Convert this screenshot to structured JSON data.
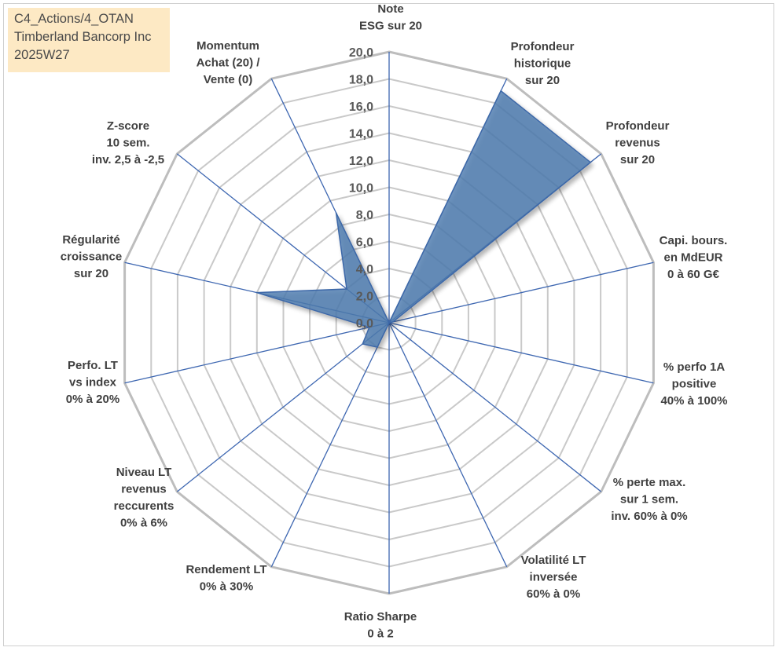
{
  "title_box": {
    "line1": "C4_Actions/4_OTAN",
    "line2": "Timberland Bancorp Inc",
    "line3": "2025W27"
  },
  "chart_data": {
    "type": "radar",
    "rmax": 20,
    "gridlines": [
      0,
      2,
      4,
      6,
      8,
      10,
      12,
      14,
      16,
      18,
      20
    ],
    "tick_labels": [
      "0,0",
      "2,0",
      "4,0",
      "6,0",
      "8,0",
      "10,0",
      "12,0",
      "14,0",
      "16,0",
      "18,0",
      "20,0"
    ],
    "axes": [
      {
        "label": [
          "Note",
          "ESG sur 20"
        ],
        "value": 0
      },
      {
        "label": [
          "Profondeur",
          "historique",
          "sur 20"
        ],
        "value": 19
      },
      {
        "label": [
          "Profondeur",
          "revenus",
          "sur 20"
        ],
        "value": 19
      },
      {
        "label": [
          "Capi. bours.",
          "en MdEUR",
          "0 à 60 G€"
        ],
        "value": 0.3
      },
      {
        "label": [
          "% perfo 1A",
          "positive",
          "40% à 100%"
        ],
        "value": 0
      },
      {
        "label": [
          "% perte max.",
          "sur 1 sem.",
          "inv. 60% à 0%"
        ],
        "value": 0
      },
      {
        "label": [
          "Volatilité LT",
          "inversée",
          "60% à 0%"
        ],
        "value": 0
      },
      {
        "label": [
          "Ratio Sharpe",
          "0 à 2"
        ],
        "value": 0
      },
      {
        "label": [
          "Rendement LT",
          "0% à 30%"
        ],
        "value": 2
      },
      {
        "label": [
          "Niveau LT",
          "revenus",
          "reccurents",
          "0% à 6%"
        ],
        "value": 2.5
      },
      {
        "label": [
          "Perfo. LT",
          "vs index",
          "0% à 20%"
        ],
        "value": 1.5
      },
      {
        "label": [
          "Régularité",
          "croissance",
          "sur 20"
        ],
        "value": 10
      },
      {
        "label": [
          "Z-score",
          "10 sem.",
          "inv. 2,5 à -2,5"
        ],
        "value": 4
      },
      {
        "label": [
          "Momentum",
          "Achat (20) /",
          "Vente (0)"
        ],
        "value": 9
      }
    ],
    "colors": {
      "fill": "#4f7bb0",
      "stroke": "#3c68a8",
      "spoke": "#3e67b1",
      "grid": "#c9c9c9",
      "grid_outer": "#bdbdbd"
    }
  }
}
